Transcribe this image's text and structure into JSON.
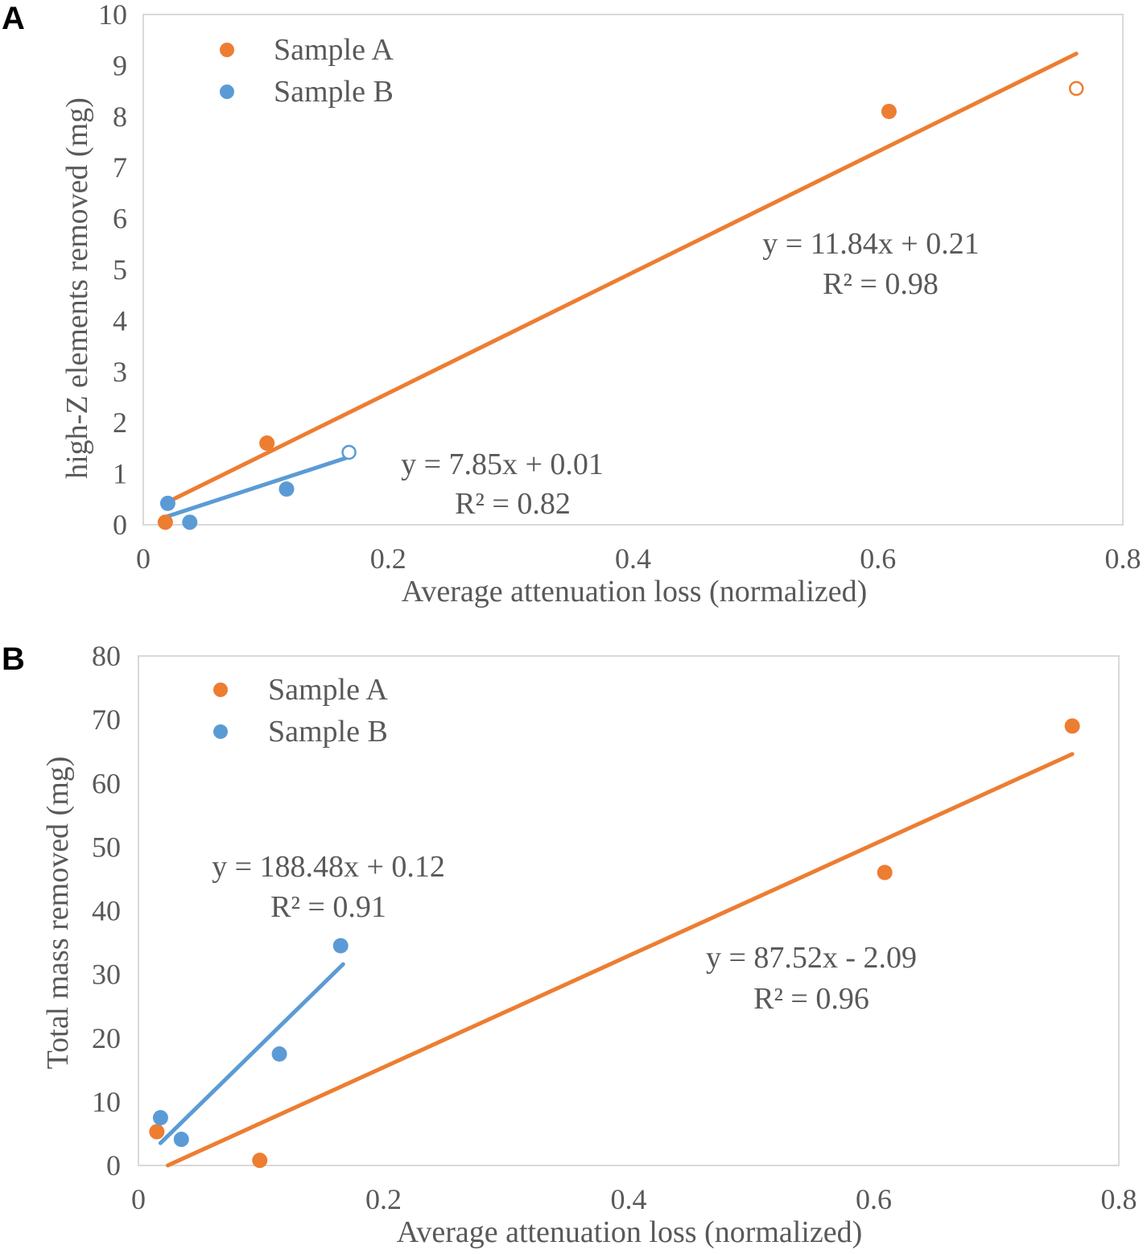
{
  "colors": {
    "sample_a": "#ED7D31",
    "sample_b": "#5B9BD5",
    "text": "#595959",
    "frame": "#d9d9d9"
  },
  "chart_data": [
    {
      "panel": "A",
      "type": "scatter",
      "xlabel": "Average attenuation loss  (normalized)",
      "ylabel": "high-Z  elements removed (mg)",
      "xlim": [
        0,
        0.8
      ],
      "ylim": [
        0,
        10
      ],
      "xticks": [
        "0",
        "0.2",
        "0.4",
        "0.6",
        "0.8"
      ],
      "yticks": [
        "0",
        "1",
        "2",
        "3",
        "4",
        "5",
        "6",
        "7",
        "8",
        "9",
        "10"
      ],
      "legend": {
        "placement": "top-left",
        "entries": [
          "Sample A",
          "Sample B"
        ]
      },
      "series": [
        {
          "name": "Sample A",
          "color": "#ED7D31",
          "points": [
            {
              "x": 0.018,
              "y": 0.05,
              "hollow": false
            },
            {
              "x": 0.101,
              "y": 1.6,
              "hollow": false
            },
            {
              "x": 0.609,
              "y": 8.1,
              "hollow": false
            },
            {
              "x": 0.762,
              "y": 8.55,
              "hollow": true
            }
          ],
          "trendline": {
            "x0": 0.018,
            "x1": 0.762,
            "slope": 11.84,
            "intercept": 0.21
          },
          "equation": "y = 11.84x + 0.21",
          "r2": "R² = 0.98"
        },
        {
          "name": "Sample B",
          "color": "#5B9BD5",
          "points": [
            {
              "x": 0.02,
              "y": 0.42,
              "hollow": false
            },
            {
              "x": 0.038,
              "y": 0.05,
              "hollow": false
            },
            {
              "x": 0.117,
              "y": 0.7,
              "hollow": false
            },
            {
              "x": 0.168,
              "y": 1.42,
              "hollow": true
            }
          ],
          "trendline": {
            "x0": 0.018,
            "x1": 0.168,
            "slope": 7.85,
            "intercept": 0.01
          },
          "equation": "y = 7.85x + 0.01",
          "r2": "R² = 0.82"
        }
      ]
    },
    {
      "panel": "B",
      "type": "scatter",
      "xlabel": "Average attenuation loss  (normalized)",
      "ylabel": "Total mass removed (mg)",
      "xlim": [
        0,
        0.8
      ],
      "ylim": [
        0,
        80
      ],
      "xticks": [
        "0",
        "0.2",
        "0.4",
        "0.6",
        "0.8"
      ],
      "yticks": [
        "0",
        "10",
        "20",
        "30",
        "40",
        "50",
        "60",
        "70",
        "80"
      ],
      "legend": {
        "placement": "top-left",
        "entries": [
          "Sample A",
          "Sample B"
        ]
      },
      "series": [
        {
          "name": "Sample A",
          "color": "#ED7D31",
          "points": [
            {
              "x": 0.015,
              "y": 5.3,
              "hollow": false
            },
            {
              "x": 0.099,
              "y": 0.8,
              "hollow": false
            },
            {
              "x": 0.609,
              "y": 46.0,
              "hollow": false
            },
            {
              "x": 0.762,
              "y": 69.0,
              "hollow": false
            }
          ],
          "trendline": {
            "x0": 0.024,
            "x1": 0.762,
            "slope": 87.52,
            "intercept": -2.09
          },
          "equation": "y = 87.52x   - 2.09",
          "r2": "R² = 0.96"
        },
        {
          "name": "Sample B",
          "color": "#5B9BD5",
          "points": [
            {
              "x": 0.018,
              "y": 7.5,
              "hollow": false
            },
            {
              "x": 0.035,
              "y": 4.1,
              "hollow": false
            },
            {
              "x": 0.115,
              "y": 17.5,
              "hollow": false
            },
            {
              "x": 0.165,
              "y": 34.5,
              "hollow": false
            }
          ],
          "trendline": {
            "x0": 0.018,
            "x1": 0.167,
            "slope": 188.48,
            "intercept": 0.12
          },
          "equation": "y = 188.48x + 0.12",
          "r2": "R² = 0.91"
        }
      ]
    }
  ]
}
